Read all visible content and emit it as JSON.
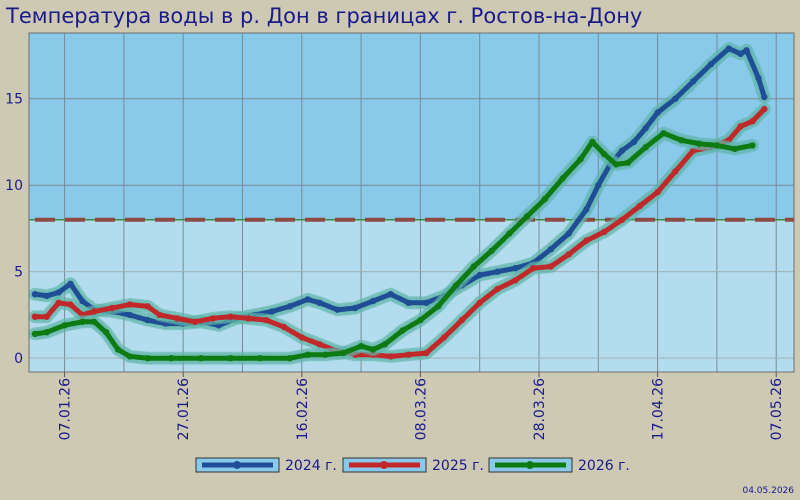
{
  "chart_data": {
    "type": "line",
    "title": "Температура воды в р. Дон в границах г. Ростов-на-Дону",
    "xlabel": "",
    "ylabel": "",
    "x_ticks": [
      "07.01.26",
      "27.01.26",
      "16.02.26",
      "08.03.26",
      "28.03.26",
      "17.04.26",
      "07.05.26"
    ],
    "xlim": [
      "2026-01-01",
      "2026-05-10"
    ],
    "ylim": [
      -0.8,
      18.8
    ],
    "y_ticks": [
      0,
      5,
      10,
      15
    ],
    "threshold": 8,
    "grid": true,
    "legend_position": "bottom",
    "series": [
      {
        "name": "2024 г.",
        "color": "#1F4E96",
        "points": [
          [
            "2026-01-02",
            3.7
          ],
          [
            "2026-01-04",
            3.6
          ],
          [
            "2026-01-06",
            3.8
          ],
          [
            "2026-01-08",
            4.3
          ],
          [
            "2026-01-10",
            3.3
          ],
          [
            "2026-01-12",
            2.8
          ],
          [
            "2026-01-15",
            2.7
          ],
          [
            "2026-01-18",
            2.5
          ],
          [
            "2026-01-21",
            2.2
          ],
          [
            "2026-01-24",
            2.0
          ],
          [
            "2026-01-27",
            2.0
          ],
          [
            "2026-01-30",
            2.1
          ],
          [
            "2026-02-02",
            1.9
          ],
          [
            "2026-02-05",
            2.3
          ],
          [
            "2026-02-08",
            2.5
          ],
          [
            "2026-02-11",
            2.7
          ],
          [
            "2026-02-14",
            3.0
          ],
          [
            "2026-02-17",
            3.4
          ],
          [
            "2026-02-19",
            3.2
          ],
          [
            "2026-02-22",
            2.8
          ],
          [
            "2026-02-25",
            2.9
          ],
          [
            "2026-02-28",
            3.3
          ],
          [
            "2026-03-03",
            3.7
          ],
          [
            "2026-03-06",
            3.2
          ],
          [
            "2026-03-09",
            3.2
          ],
          [
            "2026-03-12",
            3.6
          ],
          [
            "2026-03-15",
            4.2
          ],
          [
            "2026-03-18",
            4.8
          ],
          [
            "2026-03-21",
            5.0
          ],
          [
            "2026-03-24",
            5.2
          ],
          [
            "2026-03-27",
            5.5
          ],
          [
            "2026-03-30",
            6.3
          ],
          [
            "2026-04-02",
            7.2
          ],
          [
            "2026-04-05",
            8.6
          ],
          [
            "2026-04-07",
            10.0
          ],
          [
            "2026-04-09",
            11.2
          ],
          [
            "2026-04-11",
            12.0
          ],
          [
            "2026-04-13",
            12.5
          ],
          [
            "2026-04-15",
            13.3
          ],
          [
            "2026-04-17",
            14.2
          ],
          [
            "2026-04-20",
            15.0
          ],
          [
            "2026-04-23",
            16.0
          ],
          [
            "2026-04-26",
            17.0
          ],
          [
            "2026-04-29",
            17.9
          ],
          [
            "2026-05-01",
            17.6
          ],
          [
            "2026-05-02",
            17.8
          ],
          [
            "2026-05-04",
            16.2
          ],
          [
            "2026-05-05",
            15.1
          ]
        ]
      },
      {
        "name": "2025 г.",
        "color": "#C0282A",
        "points": [
          [
            "2026-01-02",
            2.4
          ],
          [
            "2026-01-04",
            2.4
          ],
          [
            "2026-01-06",
            3.2
          ],
          [
            "2026-01-08",
            3.1
          ],
          [
            "2026-01-10",
            2.5
          ],
          [
            "2026-01-12",
            2.7
          ],
          [
            "2026-01-15",
            2.9
          ],
          [
            "2026-01-18",
            3.1
          ],
          [
            "2026-01-21",
            3.0
          ],
          [
            "2026-01-23",
            2.5
          ],
          [
            "2026-01-26",
            2.3
          ],
          [
            "2026-01-29",
            2.1
          ],
          [
            "2026-02-01",
            2.3
          ],
          [
            "2026-02-04",
            2.4
          ],
          [
            "2026-02-07",
            2.3
          ],
          [
            "2026-02-10",
            2.2
          ],
          [
            "2026-02-13",
            1.8
          ],
          [
            "2026-02-16",
            1.2
          ],
          [
            "2026-02-19",
            0.8
          ],
          [
            "2026-02-22",
            0.4
          ],
          [
            "2026-02-25",
            0.2
          ],
          [
            "2026-02-28",
            0.2
          ],
          [
            "2026-03-03",
            0.1
          ],
          [
            "2026-03-06",
            0.2
          ],
          [
            "2026-03-09",
            0.3
          ],
          [
            "2026-03-12",
            1.2
          ],
          [
            "2026-03-15",
            2.2
          ],
          [
            "2026-03-18",
            3.2
          ],
          [
            "2026-03-21",
            4.0
          ],
          [
            "2026-03-24",
            4.5
          ],
          [
            "2026-03-27",
            5.2
          ],
          [
            "2026-03-30",
            5.3
          ],
          [
            "2026-04-02",
            6.0
          ],
          [
            "2026-04-05",
            6.8
          ],
          [
            "2026-04-08",
            7.3
          ],
          [
            "2026-04-11",
            8.0
          ],
          [
            "2026-04-14",
            8.8
          ],
          [
            "2026-04-17",
            9.6
          ],
          [
            "2026-04-20",
            10.8
          ],
          [
            "2026-04-23",
            12.0
          ],
          [
            "2026-04-26",
            12.2
          ],
          [
            "2026-04-29",
            12.6
          ],
          [
            "2026-05-01",
            13.4
          ],
          [
            "2026-05-03",
            13.7
          ],
          [
            "2026-05-05",
            14.4
          ]
        ]
      },
      {
        "name": "2026 г.",
        "color": "#0E7A12",
        "points": [
          [
            "2026-01-02",
            1.4
          ],
          [
            "2026-01-04",
            1.5
          ],
          [
            "2026-01-07",
            1.9
          ],
          [
            "2026-01-10",
            2.1
          ],
          [
            "2026-01-12",
            2.1
          ],
          [
            "2026-01-14",
            1.5
          ],
          [
            "2026-01-16",
            0.5
          ],
          [
            "2026-01-18",
            0.1
          ],
          [
            "2026-01-21",
            0.0
          ],
          [
            "2026-01-25",
            0.0
          ],
          [
            "2026-01-30",
            0.0
          ],
          [
            "2026-02-04",
            0.0
          ],
          [
            "2026-02-09",
            0.0
          ],
          [
            "2026-02-14",
            0.0
          ],
          [
            "2026-02-17",
            0.2
          ],
          [
            "2026-02-20",
            0.2
          ],
          [
            "2026-02-23",
            0.3
          ],
          [
            "2026-02-26",
            0.7
          ],
          [
            "2026-02-28",
            0.5
          ],
          [
            "2026-03-02",
            0.8
          ],
          [
            "2026-03-05",
            1.6
          ],
          [
            "2026-03-08",
            2.2
          ],
          [
            "2026-03-11",
            3.0
          ],
          [
            "2026-03-14",
            4.2
          ],
          [
            "2026-03-17",
            5.3
          ],
          [
            "2026-03-20",
            6.2
          ],
          [
            "2026-03-23",
            7.2
          ],
          [
            "2026-03-26",
            8.2
          ],
          [
            "2026-03-29",
            9.2
          ],
          [
            "2026-04-01",
            10.4
          ],
          [
            "2026-04-04",
            11.5
          ],
          [
            "2026-04-06",
            12.5
          ],
          [
            "2026-04-08",
            11.8
          ],
          [
            "2026-04-10",
            11.2
          ],
          [
            "2026-04-12",
            11.3
          ],
          [
            "2026-04-15",
            12.2
          ],
          [
            "2026-04-18",
            13.0
          ],
          [
            "2026-04-21",
            12.6
          ],
          [
            "2026-04-24",
            12.4
          ],
          [
            "2026-04-27",
            12.3
          ],
          [
            "2026-04-30",
            12.1
          ],
          [
            "2026-05-03",
            12.3
          ]
        ]
      }
    ]
  },
  "footer_date": "04.05.2026",
  "colors": {
    "page_bg": "#CDC9B3",
    "plot_above_threshold": "#89C9EA",
    "plot_below_threshold": "#B3DDEE",
    "threshold_dash": "#8C4A42",
    "threshold_line": "#3C8C3C",
    "text": "#1a1a8c",
    "halo": "#5FB4A8"
  }
}
